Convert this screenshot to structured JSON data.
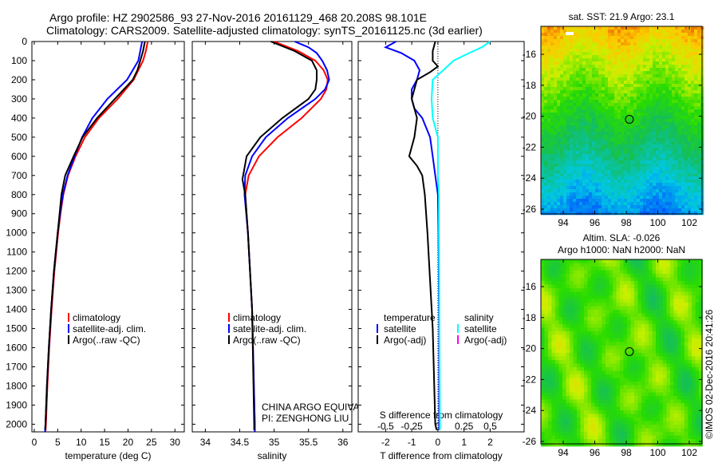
{
  "title_line1": "Argo profile: HZ 2902586_93 27-Nov-2016 20161129_468 20.208S 98.101E",
  "title_line2": "Climatology: CARS2009. Satellite-adjusted climatology: synTS_20161125.nc (3d earlier)",
  "colors": {
    "climatology": "#ff0000",
    "satellite": "#0000ff",
    "argo": "#000000",
    "sal_satellite": "#00ffff",
    "sal_argo": "#ff00ff"
  },
  "chart_data": [
    {
      "type": "line",
      "name": "temperature",
      "xlabel": "temperature (deg C)",
      "xlim": [
        -0.5,
        32
      ],
      "ylim": [
        2040,
        0
      ],
      "xticks": [
        "0",
        "5",
        "10",
        "15",
        "20",
        "25",
        "30"
      ],
      "xtick_values": [
        0,
        5,
        10,
        15,
        20,
        25,
        30
      ],
      "yticks": [
        "0",
        "100",
        "200",
        "300",
        "400",
        "500",
        "600",
        "700",
        "800",
        "900",
        "1000",
        "1100",
        "1200",
        "1300",
        "1400",
        "1500",
        "1600",
        "1700",
        "1800",
        "1900",
        "2000"
      ],
      "legend": [
        "climatology",
        "satellite-adj. clim.",
        "Argo(..raw -QC)"
      ],
      "series": [
        {
          "name": "climatology",
          "color": "#ff0000",
          "depth": [
            0,
            50,
            100,
            200,
            300,
            400,
            500,
            600,
            700,
            800,
            900,
            1000,
            1200,
            1400,
            1600,
            1800,
            2000,
            2040
          ],
          "values": [
            24.2,
            23.8,
            23.2,
            21.2,
            17.8,
            13.8,
            10.8,
            8.8,
            7.2,
            6.2,
            5.6,
            5.1,
            4.3,
            3.7,
            3.2,
            2.8,
            2.5,
            2.4
          ]
        },
        {
          "name": "satellite-adj. clim.",
          "color": "#0000ff",
          "depth": [
            0,
            50,
            100,
            200,
            300,
            400,
            500,
            600,
            700,
            800,
            900,
            1000,
            1200,
            1400,
            1600,
            1800,
            2000,
            2040
          ],
          "values": [
            23,
            22.6,
            22.2,
            19.8,
            15.6,
            12.4,
            10.2,
            8.6,
            7.1,
            6.1,
            5.5,
            5.0,
            4.2,
            3.6,
            3.1,
            2.7,
            2.4,
            2.3
          ]
        },
        {
          "name": "Argo(..raw -QC)",
          "color": "#000000",
          "depth": [
            0,
            50,
            100,
            150,
            200,
            300,
            400,
            500,
            600,
            700,
            800,
            900,
            1000,
            1200,
            1400,
            1600,
            1800,
            2000,
            2030
          ],
          "values": [
            23.6,
            23.2,
            22.6,
            22.0,
            21.0,
            17.2,
            13.4,
            10.3,
            8.4,
            6.6,
            5.8,
            5.4,
            5.0,
            4.2,
            3.6,
            3.1,
            2.7,
            2.4,
            2.3
          ]
        }
      ]
    },
    {
      "type": "line",
      "name": "salinity",
      "xlabel": "salinity",
      "xlim": [
        33.81,
        36.13
      ],
      "ylim": [
        2040,
        0
      ],
      "xticks": [
        "34",
        "34.5",
        "35",
        "35.5",
        "36"
      ],
      "xtick_values": [
        34,
        34.5,
        35,
        35.5,
        36
      ],
      "legend": [
        "climatology",
        "satellite-adj. clim.",
        "Argo(..raw -QC)"
      ],
      "annotations": [
        "CHINA ARGO EQUIVALENT",
        "PI: ZENGHONG LIU"
      ],
      "series": [
        {
          "name": "climatology",
          "color": "#ff0000",
          "depth": [
            0,
            50,
            100,
            150,
            200,
            250,
            300,
            400,
            500,
            600,
            700,
            800,
            1000,
            1400,
            2000,
            2040
          ],
          "values": [
            35.0,
            35.35,
            35.6,
            35.72,
            35.78,
            35.76,
            35.68,
            35.4,
            35.05,
            34.78,
            34.63,
            34.58,
            34.62,
            34.68,
            34.72,
            34.72
          ]
        },
        {
          "name": "satellite-adj. clim.",
          "color": "#0000ff",
          "depth": [
            0,
            30,
            60,
            100,
            150,
            200,
            250,
            300,
            400,
            500,
            600,
            700,
            800,
            1000,
            1400,
            2000,
            2040
          ],
          "values": [
            35.3,
            35.5,
            35.62,
            35.7,
            35.77,
            35.8,
            35.74,
            35.6,
            35.2,
            34.88,
            34.68,
            34.58,
            34.57,
            34.62,
            34.68,
            34.72,
            34.72
          ]
        },
        {
          "name": "Argo(..raw -QC)",
          "color": "#000000",
          "depth": [
            0,
            50,
            100,
            150,
            200,
            250,
            300,
            400,
            500,
            600,
            700,
            720,
            800,
            1000,
            1400,
            2000,
            2030
          ],
          "values": [
            34.95,
            35.3,
            35.55,
            35.62,
            35.62,
            35.6,
            35.5,
            35.12,
            34.8,
            34.6,
            34.55,
            34.54,
            34.58,
            34.62,
            34.68,
            34.71,
            34.71
          ]
        }
      ]
    },
    {
      "type": "line",
      "name": "difference",
      "xlabel": "T difference from climatology",
      "x2label": "S difference from climatology",
      "xlim": [
        -3.05,
        3.3
      ],
      "x2lim": [
        -0.7625,
        0.825
      ],
      "ylim": [
        2040,
        0
      ],
      "xticks": [
        "-2",
        "-1",
        "0",
        "1",
        "2"
      ],
      "xtick_values": [
        -2,
        -1,
        0,
        1,
        2
      ],
      "x2ticks": [
        "-0.5",
        "-0.25",
        "0",
        "0.25",
        "0.5"
      ],
      "x2tick_values": [
        -0.5,
        -0.25,
        0,
        0.25,
        0.5
      ],
      "legend_headers": [
        "temperature",
        "salinity"
      ],
      "legend_t": [
        "satellite",
        "Argo(-adj)"
      ],
      "legend_s": [
        "satellite",
        "Argo(-adj)"
      ],
      "series": [
        {
          "name": "T satellite",
          "axis": "T",
          "color": "#0000ff",
          "depth": [
            0,
            30,
            60,
            100,
            150,
            200,
            250,
            300,
            350,
            400,
            500,
            600,
            700,
            800,
            1000,
            1500,
            2000,
            2030
          ],
          "values": [
            -1.6,
            -2.0,
            -1.4,
            -0.9,
            -0.7,
            -0.8,
            -1.0,
            -1.0,
            -0.9,
            -0.6,
            -0.3,
            -0.2,
            -0.1,
            0,
            0.02,
            0.05,
            0.05,
            0.05
          ]
        },
        {
          "name": "T Argo(-adj)",
          "axis": "T",
          "color": "#000000",
          "depth": [
            0,
            50,
            100,
            130,
            160,
            200,
            250,
            300,
            400,
            500,
            600,
            650,
            700,
            800,
            1000,
            1500,
            2000,
            2030
          ],
          "values": [
            -0.1,
            -0.2,
            -0.2,
            0.0,
            -0.3,
            -0.8,
            -0.9,
            -1.0,
            -0.8,
            -0.9,
            -1.1,
            -0.8,
            -0.6,
            -0.5,
            -0.4,
            -0.2,
            -0.1,
            -0.05
          ]
        },
        {
          "name": "S satellite",
          "axis": "S",
          "color": "#00ffff",
          "depth": [
            0,
            30,
            60,
            100,
            150,
            200,
            300,
            400,
            500,
            700,
            800,
            1000,
            2000,
            2030
          ],
          "values": [
            0.5,
            0.42,
            0.3,
            0.15,
            0.05,
            -0.05,
            -0.06,
            -0.05,
            0,
            0,
            0.01,
            0.01,
            0.02,
            0.02
          ]
        }
      ]
    }
  ],
  "map1": {
    "title": "sat. SST: 21.9  Argo: 23.1",
    "lon_ticks": [
      "94",
      "96",
      "98",
      "100",
      "102"
    ],
    "lat_ticks": [
      "-16",
      "-18",
      "-20",
      "-22",
      "-24",
      "-26"
    ],
    "marker": {
      "lon": 98.2,
      "lat": -20.2
    }
  },
  "map2": {
    "title1": "Altim. SLA: -0.026",
    "title2": "Argo h1000: NaN h2000: NaN",
    "lon_ticks": [
      "94",
      "96",
      "98",
      "100",
      "102"
    ],
    "lat_ticks": [
      "-16",
      "-18",
      "-20",
      "-22",
      "-24",
      "-26"
    ],
    "marker": {
      "lon": 98.2,
      "lat": -20.2
    }
  },
  "credit": "©IMOS 02-Dec-2016 20:41:26"
}
